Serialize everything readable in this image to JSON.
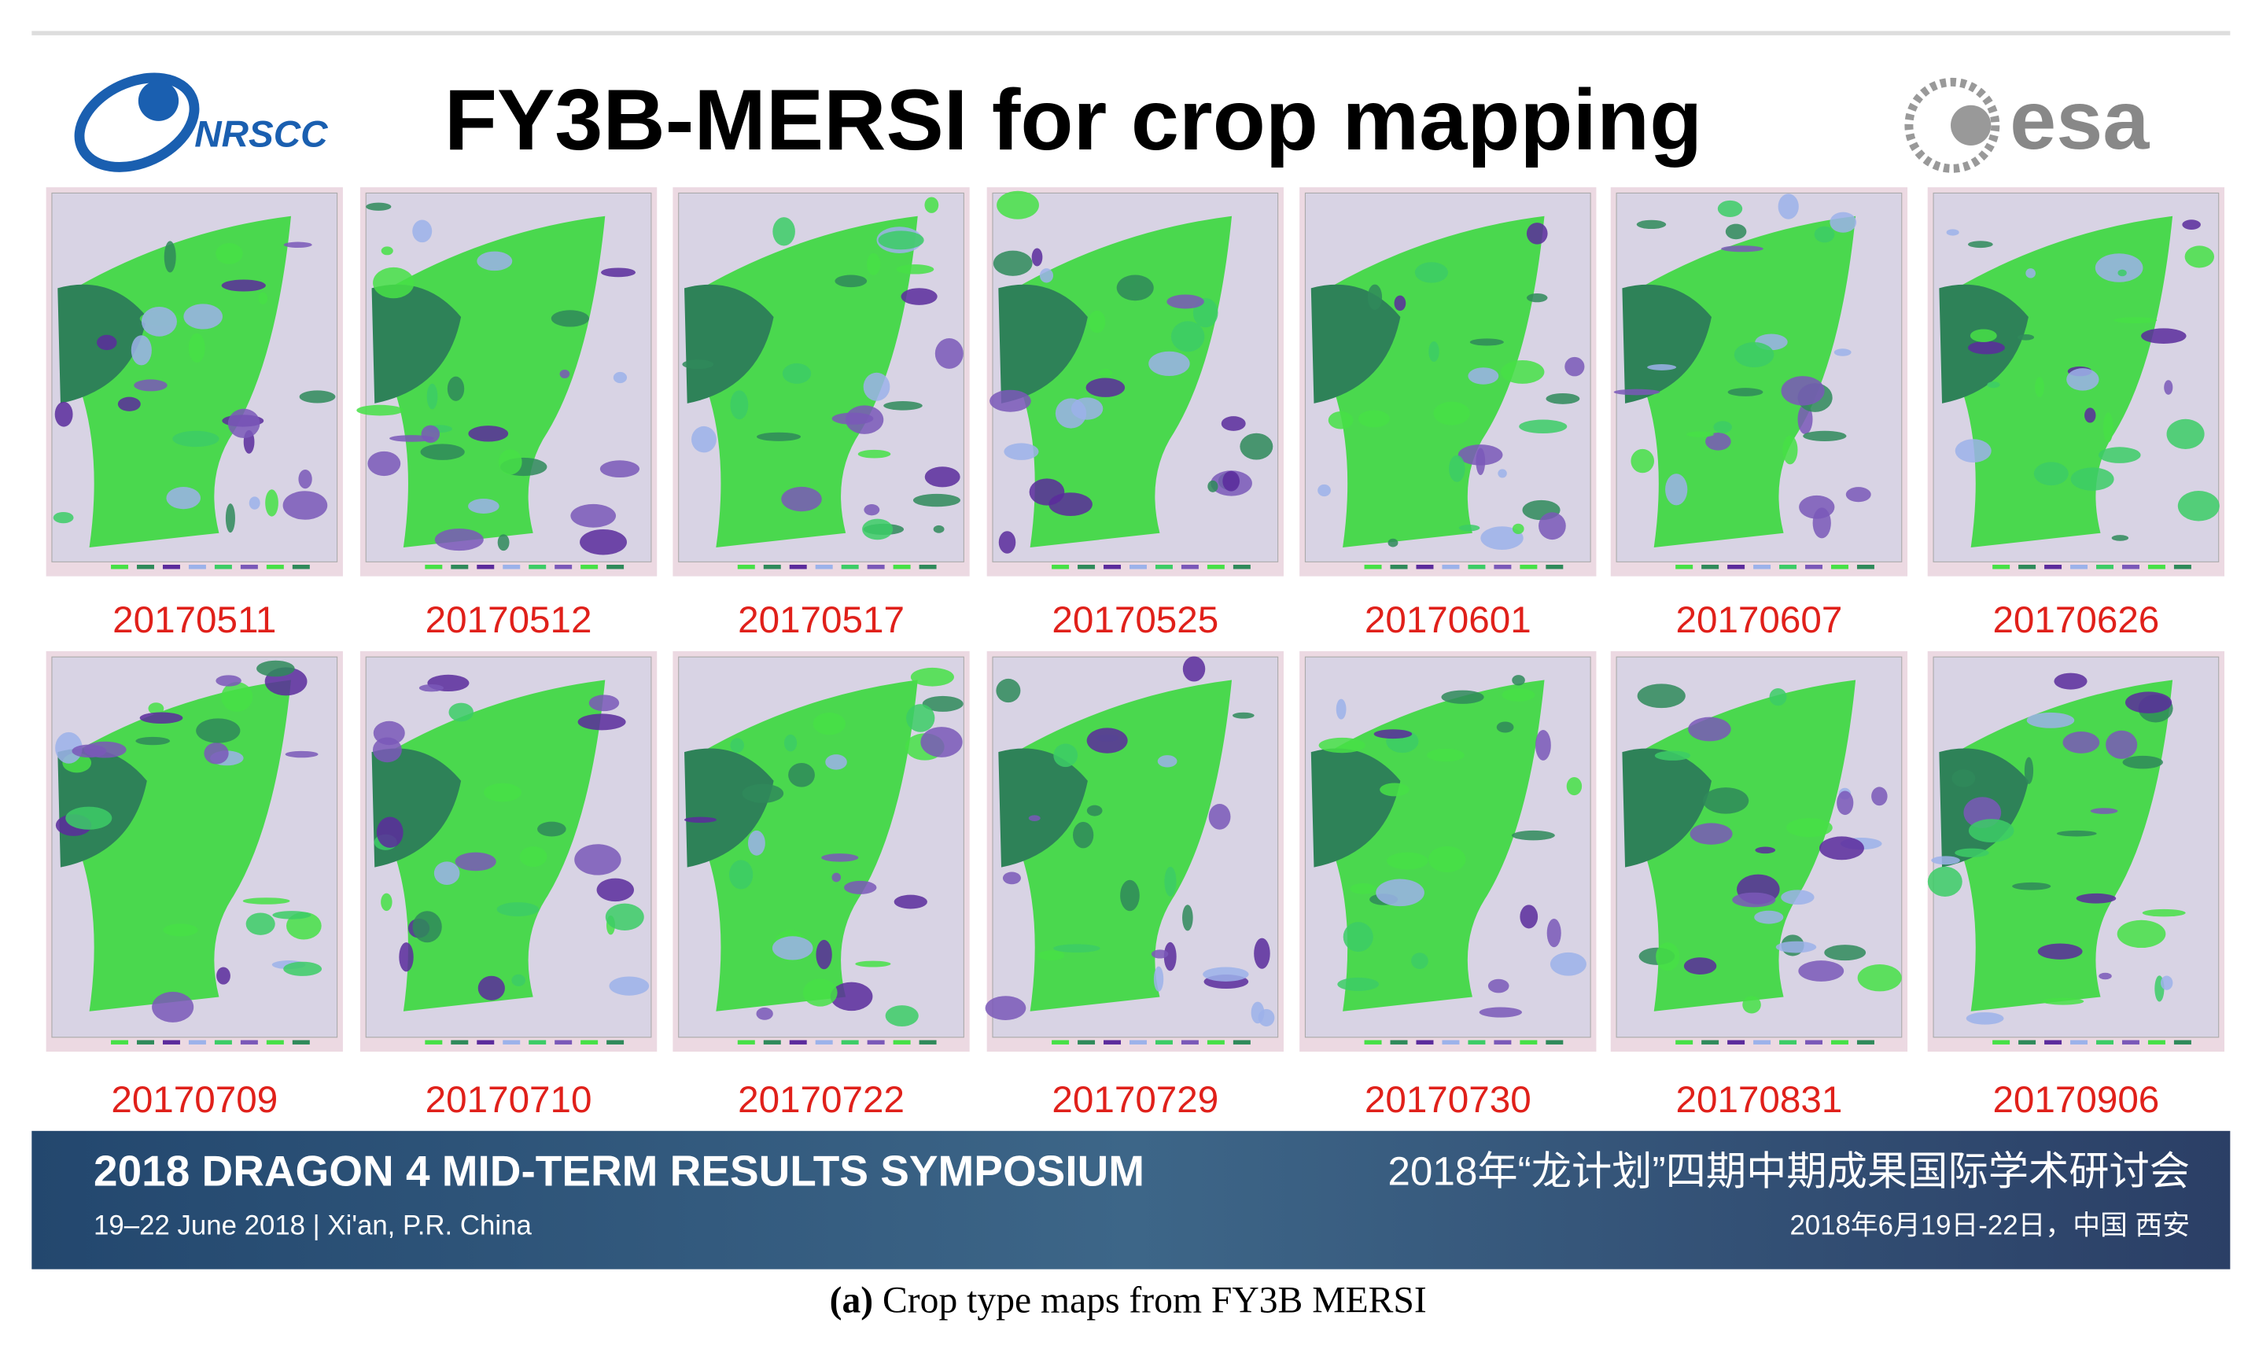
{
  "header": {
    "title": "FY3B-MERSI for crop mapping",
    "left_logo": "NRSCC",
    "right_logo": "esa"
  },
  "panels": [
    "20170511",
    "20170512",
    "20170517",
    "20170525",
    "20170601",
    "20170607",
    "20170626",
    "20170709",
    "20170710",
    "20170722",
    "20170729",
    "20170730",
    "20170831",
    "20170906"
  ],
  "footer": {
    "event": "2018 DRAGON 4 MID-TERM RESULTS SYMPOSIUM",
    "place_date": "19–22 June 2018 | Xi'an, P.R. China",
    "event_cn": "2018年“龙计划”四期中期成果国际学术研讨会",
    "place_date_cn": "2018年6月19日-22日，中国 西安"
  },
  "caption": {
    "label": "(a)",
    "text": "Crop type maps from FY3B MERSI"
  }
}
